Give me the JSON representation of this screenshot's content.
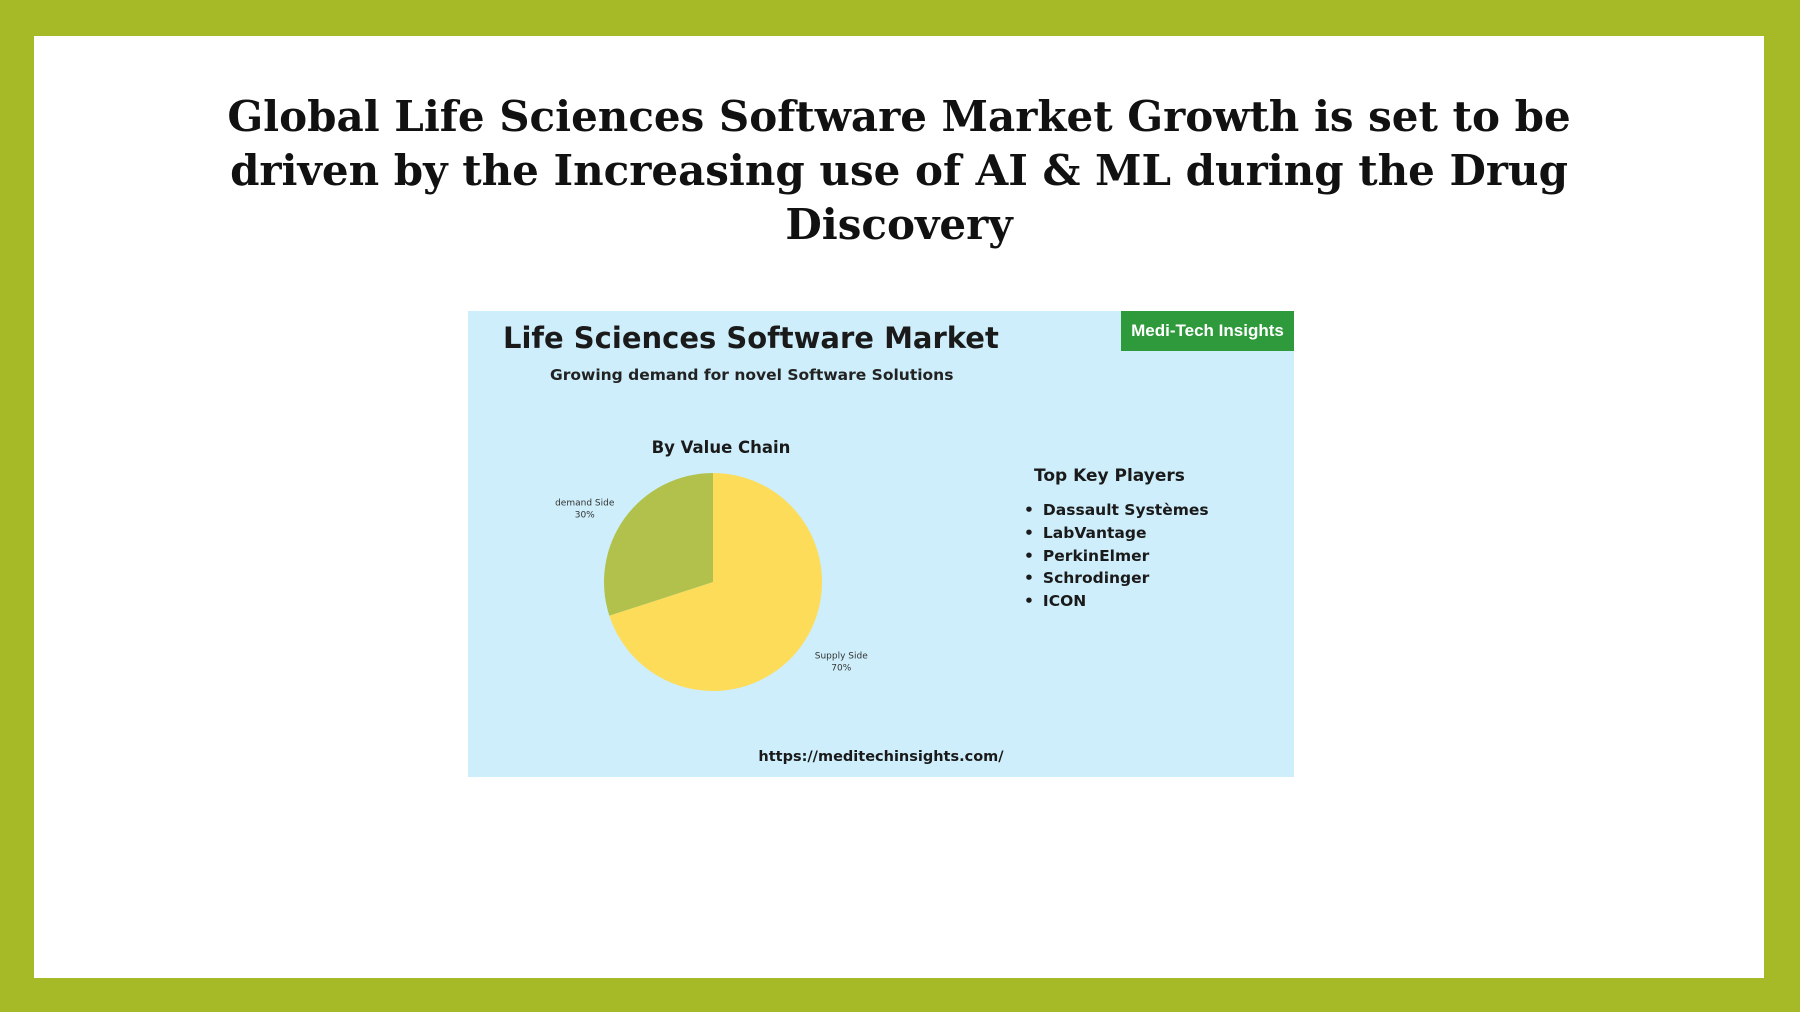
{
  "headline": {
    "line1": "Global Life Sciences Software Market Growth is set to be",
    "line2": "driven by the Increasing use of AI & ML during the Drug",
    "line3": "Discovery"
  },
  "infographic": {
    "title": "Life Sciences Software Market",
    "subtitle": "Growing demand for novel Software Solutions",
    "brand": "Medi-Tech Insights",
    "key_players_heading": "Top Key Players",
    "key_players": [
      "Dassault Systèmes",
      "LabVantage",
      "PerkinElmer",
      "Schrodinger",
      "ICON"
    ],
    "url": "https://meditechinsights.com/"
  },
  "chart_data": {
    "type": "pie",
    "title": "By Value Chain",
    "slices": [
      {
        "label": "Supply Side",
        "value": 70,
        "value_label": "70%",
        "color": "#fddc5a"
      },
      {
        "label": "demand Side",
        "value": 30,
        "value_label": "30%",
        "color": "#b1c14c"
      }
    ]
  }
}
